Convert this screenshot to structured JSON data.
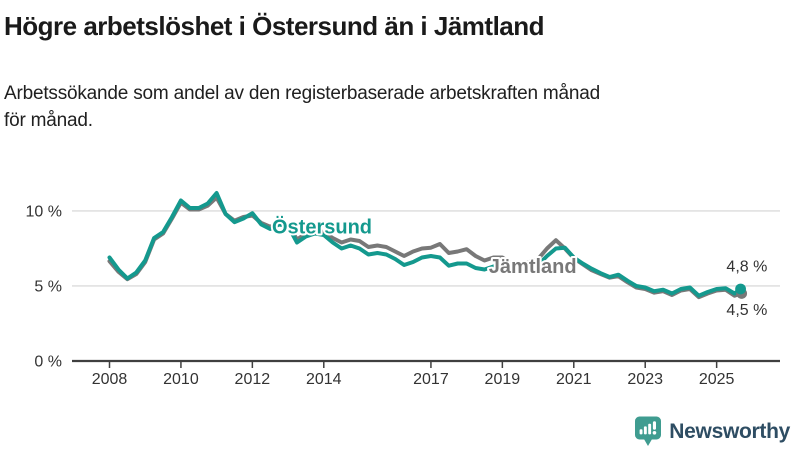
{
  "header": {
    "title": "Högre arbetslöshet i Östersund än i Jämtland",
    "subtitle_line1": "Arbetssökande som andel av den registerbaserade arbetskraften månad",
    "subtitle_line2": "för månad."
  },
  "footer": {
    "brand": "Newsworthy"
  },
  "theme": {
    "accent": "#14998e",
    "muted": "#787878",
    "brand-navy": "#2e4d63",
    "brand-teal": "#3f9c90",
    "text": "#1a1a1a",
    "grid": "#dcdcdc",
    "axis": "#3f3f3f",
    "tick-text": "#333333"
  },
  "chart_data": {
    "type": "line",
    "title": "Högre arbetslöshet i Östersund än i Jämtland",
    "xlabel": "",
    "ylabel": "",
    "grid": "horizontal",
    "legend": "inline-labels",
    "xlim": [
      2006.95,
      2026.55
    ],
    "ylim": [
      0,
      12.33
    ],
    "x": [
      2008,
      2008.25,
      2008.5,
      2008.75,
      2009,
      2009.25,
      2009.5,
      2009.75,
      2010,
      2010.25,
      2010.5,
      2010.75,
      2011,
      2011.25,
      2011.5,
      2011.75,
      2012,
      2012.25,
      2012.5,
      2012.75,
      2013,
      2013.25,
      2013.5,
      2013.75,
      2014,
      2014.25,
      2014.5,
      2014.75,
      2015,
      2015.25,
      2015.5,
      2015.75,
      2016,
      2016.25,
      2016.5,
      2016.75,
      2017,
      2017.25,
      2017.5,
      2017.75,
      2018,
      2018.25,
      2018.5,
      2018.75,
      2019,
      2019.25,
      2019.5,
      2019.75,
      2020,
      2020.25,
      2020.5,
      2020.75,
      2021,
      2021.25,
      2021.5,
      2021.75,
      2022,
      2022.25,
      2022.5,
      2022.75,
      2023,
      2023.25,
      2023.5,
      2023.75,
      2024,
      2024.25,
      2024.5,
      2024.75,
      2025,
      2025.25,
      2025.5,
      2025.67
    ],
    "series": [
      {
        "name": "Östersund",
        "color": "#14998e",
        "values": [
          6.9,
          6.1,
          5.5,
          5.9,
          6.7,
          8.2,
          8.6,
          9.6,
          10.7,
          10.2,
          10.2,
          10.5,
          11.2,
          9.8,
          9.25,
          9.5,
          9.85,
          9.1,
          8.8,
          9.1,
          9.0,
          7.9,
          8.3,
          8.5,
          8.4,
          7.9,
          7.5,
          7.7,
          7.5,
          7.1,
          7.2,
          7.1,
          6.8,
          6.4,
          6.6,
          6.9,
          7.0,
          6.9,
          6.35,
          6.5,
          6.5,
          6.2,
          6.1,
          6.3,
          6.4,
          6.1,
          6.0,
          6.2,
          6.4,
          7.0,
          7.5,
          7.55,
          6.9,
          6.5,
          6.15,
          5.85,
          5.6,
          5.75,
          5.35,
          5.0,
          4.9,
          4.65,
          4.75,
          4.5,
          4.8,
          4.9,
          4.35,
          4.6,
          4.8,
          4.85,
          4.5,
          4.8
        ]
      },
      {
        "name": "Jämtland",
        "color": "#787878",
        "values": [
          6.65,
          5.95,
          5.45,
          5.8,
          6.6,
          8.1,
          8.5,
          9.5,
          10.55,
          10.1,
          10.1,
          10.35,
          10.9,
          9.8,
          9.35,
          9.6,
          9.7,
          9.2,
          8.95,
          9.2,
          9.1,
          8.1,
          8.5,
          8.7,
          8.6,
          8.2,
          7.9,
          8.1,
          8.0,
          7.6,
          7.7,
          7.6,
          7.3,
          7.0,
          7.3,
          7.5,
          7.55,
          7.8,
          7.2,
          7.3,
          7.45,
          7.0,
          6.7,
          6.9,
          6.9,
          6.5,
          6.4,
          6.6,
          6.8,
          7.5,
          8.05,
          7.5,
          6.85,
          6.45,
          6.05,
          5.8,
          5.55,
          5.65,
          5.25,
          4.9,
          4.8,
          4.55,
          4.65,
          4.4,
          4.7,
          4.8,
          4.25,
          4.5,
          4.7,
          4.75,
          4.35,
          4.5
        ]
      }
    ],
    "yticks": [
      {
        "value": 0,
        "label": "0 %"
      },
      {
        "value": 5,
        "label": "5 %"
      },
      {
        "value": 10,
        "label": "10 %"
      }
    ],
    "xticks": [
      {
        "value": 2008,
        "label": "2008"
      },
      {
        "value": 2010,
        "label": "2010"
      },
      {
        "value": 2012,
        "label": "2012"
      },
      {
        "value": 2014,
        "label": "2014"
      },
      {
        "value": 2017,
        "label": "2017"
      },
      {
        "value": 2019,
        "label": "2019"
      },
      {
        "value": 2021,
        "label": "2021"
      },
      {
        "value": 2023,
        "label": "2023"
      },
      {
        "value": 2025,
        "label": "2025"
      }
    ],
    "series_labels": [
      {
        "text": "Östersund",
        "t": 2013.95,
        "v": 8.95,
        "color": "#14998e"
      },
      {
        "text": "Jämtland",
        "t": 2019.85,
        "v": 6.33,
        "color": "#787878"
      }
    ],
    "end_labels": [
      {
        "text": "4,8 %",
        "t": 2026.42,
        "v": 5.95
      },
      {
        "text": "4,5 %",
        "t": 2026.42,
        "v": 3.05
      }
    ],
    "end_dots": [
      {
        "series": "Östersund",
        "t": 2025.67,
        "v": 4.8
      },
      {
        "series": "Jämtland",
        "t": 2025.7,
        "v": 4.5
      }
    ]
  }
}
